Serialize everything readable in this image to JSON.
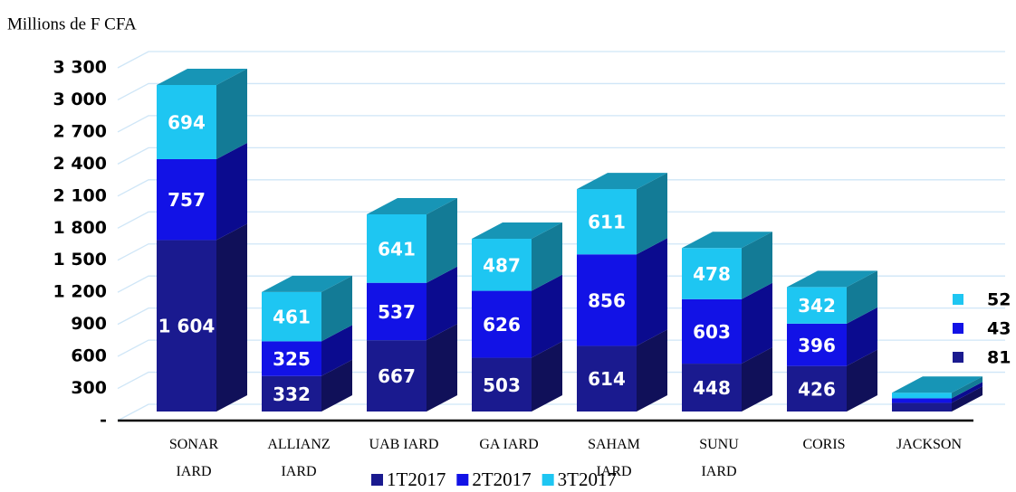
{
  "chart_data": {
    "type": "bar3d_stacked",
    "y_axis_title": "Millions de F CFA",
    "categories": [
      "SONAR IARD",
      "ALLIANZ IARD",
      "UAB IARD",
      "GA IARD",
      "SAHAM IARD",
      "SUNU IARD",
      "CORIS",
      "JACKSON"
    ],
    "series": [
      {
        "name": "1T2017",
        "color": "#1a1a8f",
        "values": [
          1604,
          332,
          667,
          503,
          614,
          448,
          426,
          81
        ],
        "value_labels": [
          "1 604",
          "332",
          "667",
          "503",
          "614",
          "448",
          "426",
          "81"
        ]
      },
      {
        "name": "2T2017",
        "color": "#1212e6",
        "values": [
          757,
          325,
          537,
          626,
          856,
          603,
          396,
          43
        ]
      },
      {
        "name": "3T2017",
        "color": "#1ec6f2",
        "values": [
          694,
          461,
          641,
          487,
          611,
          478,
          342,
          52
        ]
      }
    ],
    "ylim": [
      0,
      3300
    ],
    "yticks": [
      {
        "value": 0,
        "label": "-"
      },
      300,
      600,
      900,
      {
        "value": 1200,
        "label": "1 200"
      },
      {
        "value": 1500,
        "label": "1 500"
      },
      {
        "value": 1800,
        "label": "1 800"
      },
      {
        "value": 2100,
        "label": "2 100"
      },
      {
        "value": 2400,
        "label": "2 400"
      },
      {
        "value": 2700,
        "label": "2 700"
      },
      {
        "value": 3000,
        "label": "3 000"
      },
      {
        "value": 3300,
        "label": "3 300"
      }
    ],
    "grid": true
  }
}
